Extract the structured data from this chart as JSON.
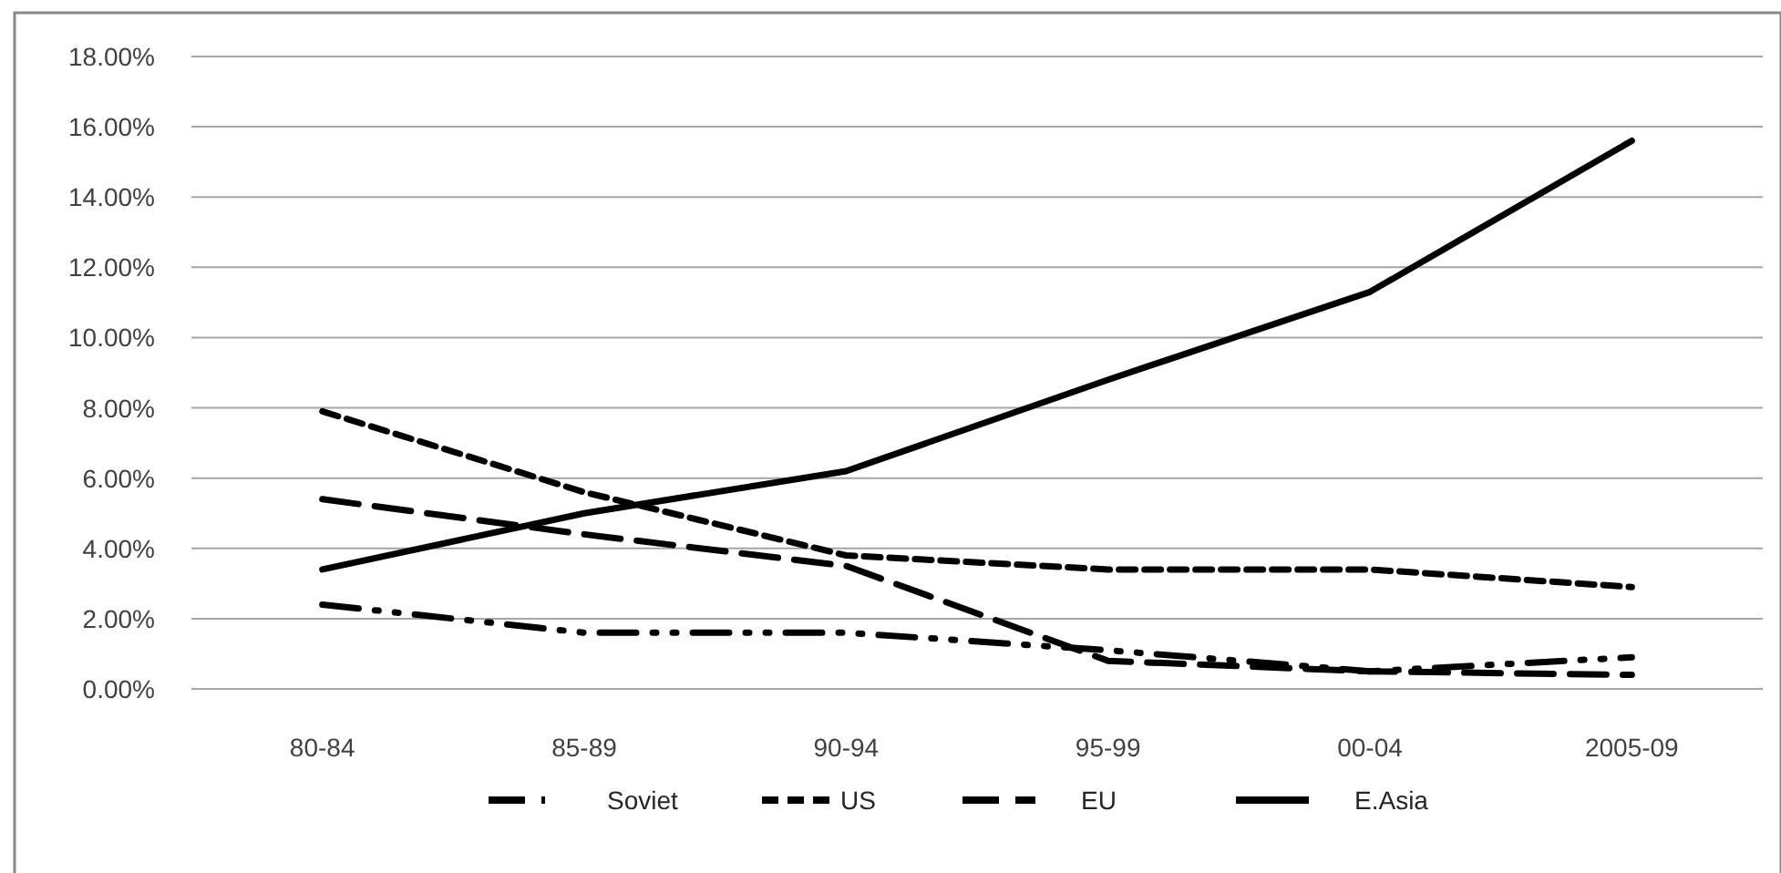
{
  "chart_data": {
    "type": "line",
    "categories": [
      "80-84",
      "85-89",
      "90-94",
      "95-99",
      "00-04",
      "2005-09"
    ],
    "series": [
      {
        "name": "Soviet",
        "color": "#000000",
        "line_style": "dashdot",
        "values": [
          0.024,
          0.016,
          0.016,
          0.011,
          0.005,
          0.009
        ]
      },
      {
        "name": "US",
        "color": "#000000",
        "line_style": "dashed",
        "values": [
          0.079,
          0.056,
          0.038,
          0.034,
          0.034,
          0.029
        ]
      },
      {
        "name": "EU",
        "color": "#000000",
        "line_style": "longdash",
        "values": [
          0.054,
          0.044,
          0.035,
          0.008,
          0.005,
          0.004
        ]
      },
      {
        "name": "E.Asia",
        "color": "#000000",
        "line_style": "solid",
        "values": [
          0.034,
          0.05,
          0.062,
          0.088,
          0.113,
          0.156
        ]
      }
    ],
    "ylim": [
      0,
      0.18
    ],
    "yticks": [
      {
        "value": 0,
        "label": "0.00%"
      },
      {
        "value": 0.02,
        "label": "2.00%"
      },
      {
        "value": 0.04,
        "label": "4.00%"
      },
      {
        "value": 0.06,
        "label": "6.00%"
      },
      {
        "value": 0.08,
        "label": "8.00%"
      },
      {
        "value": 0.1,
        "label": "10.00%"
      },
      {
        "value": 0.12,
        "label": "12.00%"
      },
      {
        "value": 0.14,
        "label": "14.00%"
      },
      {
        "value": 0.16,
        "label": "16.00%"
      },
      {
        "value": 0.18,
        "label": "18.00%"
      }
    ],
    "grid": "y",
    "legend": "bottom",
    "marker": "none"
  }
}
